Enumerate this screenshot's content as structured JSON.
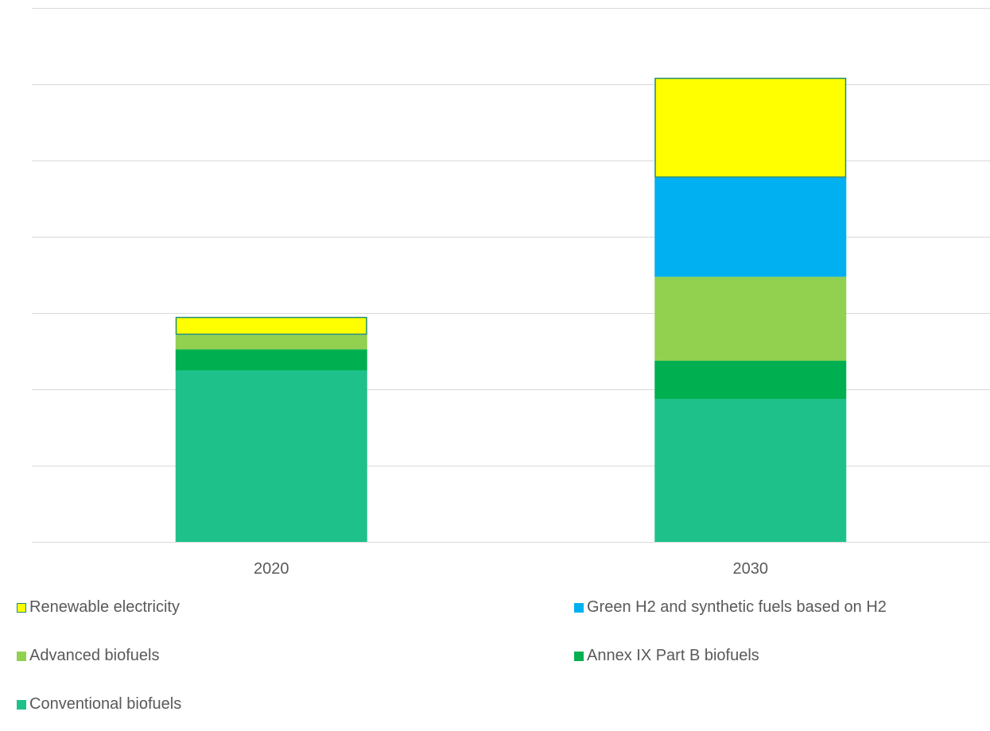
{
  "chart_data": {
    "type": "bar",
    "stacked": true,
    "categories": [
      "2020",
      "2030"
    ],
    "series": [
      {
        "name": "Conventional biofuels",
        "values": [
          4.5,
          3.75
        ],
        "color": "#1FC18A"
      },
      {
        "name": "Annex IX Part B biofuels",
        "values": [
          0.55,
          1.0
        ],
        "color": "#00B050"
      },
      {
        "name": "Advanced biofuels",
        "values": [
          0.38,
          2.2
        ],
        "color": "#92D050"
      },
      {
        "name": "Green H2 and synthetic fuels based on H2",
        "values": [
          0,
          2.6
        ],
        "color": "#00B0F0"
      },
      {
        "name": "Renewable electricity",
        "values": [
          0.47,
          2.62
        ],
        "color": "#FFFF00",
        "outline": "#1F8A7A"
      }
    ],
    "ylim": [
      0,
      14
    ],
    "gridline_step": 2,
    "y_tick_labels_shown": false,
    "grid": true,
    "legend_position": "bottom"
  }
}
